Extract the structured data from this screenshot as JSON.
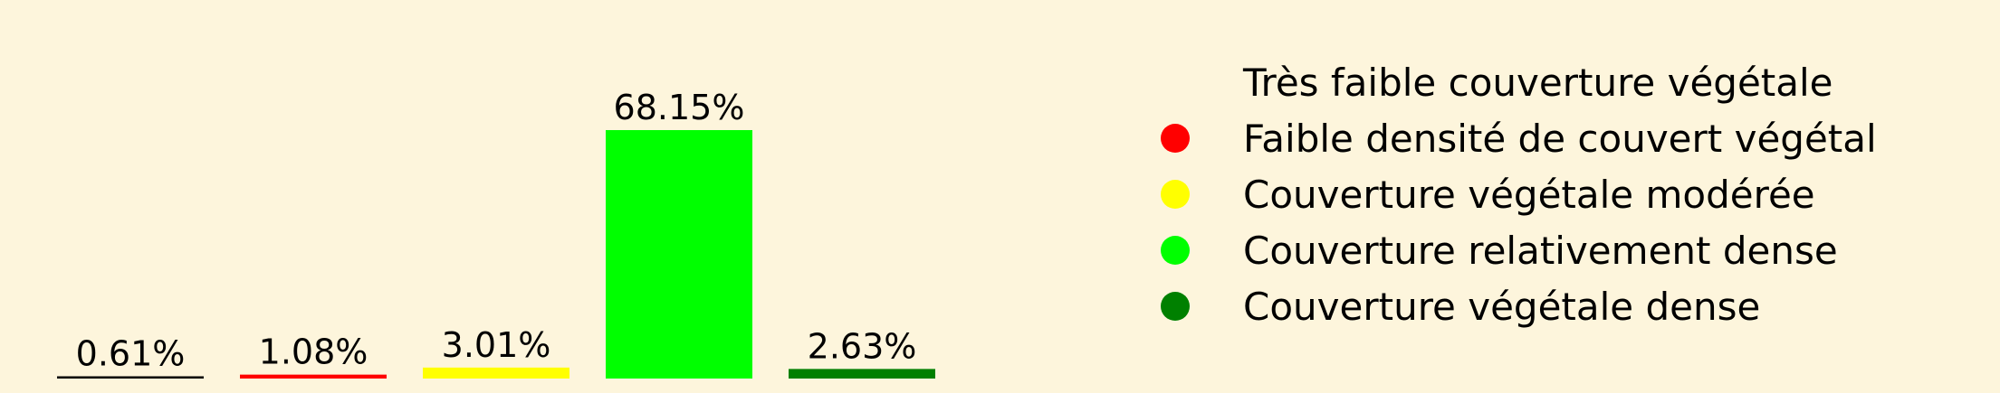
{
  "chart_data": {
    "type": "bar",
    "categories": [
      "Très faible couverture végétale",
      "Faible densité de couvert végétal",
      "Couverture végétale modérée",
      "Couverture relativement dense",
      "Couverture végétale dense"
    ],
    "values": [
      0.61,
      1.08,
      3.01,
      68.15,
      2.63
    ],
    "data_labels": [
      "0.61%",
      "1.08%",
      "3.01%",
      "68.15%",
      "2.63%"
    ],
    "colors": [
      "#000000",
      "#ff0000",
      "#ffff00",
      "#00ff00",
      "#008000"
    ],
    "ylim": [
      0,
      68.15
    ],
    "grid": false,
    "axes_visible": false,
    "legend_position": "right",
    "legend": {
      "entries": [
        "Très faible couverture végétale",
        "Faible densité de couvert végétal",
        "Couverture végétale modérée",
        "Couverture relativement dense",
        "Couverture végétale dense"
      ],
      "colors": [
        "#fdf5dc",
        "#ff0000",
        "#ffff00",
        "#00ff00",
        "#008000"
      ]
    }
  },
  "colors": {
    "background": "#fdf5dc"
  }
}
